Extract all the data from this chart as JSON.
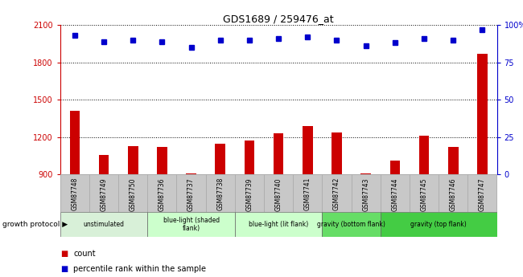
{
  "title": "GDS1689 / 259476_at",
  "samples": [
    "GSM87748",
    "GSM87749",
    "GSM87750",
    "GSM87736",
    "GSM87737",
    "GSM87738",
    "GSM87739",
    "GSM87740",
    "GSM87741",
    "GSM87742",
    "GSM87743",
    "GSM87744",
    "GSM87745",
    "GSM87746",
    "GSM87747"
  ],
  "counts": [
    1410,
    1060,
    1130,
    1120,
    910,
    1150,
    1170,
    1230,
    1290,
    1240,
    910,
    1010,
    1210,
    1120,
    1870
  ],
  "percentile": [
    93,
    89,
    90,
    89,
    85,
    90,
    90,
    91,
    92,
    90,
    86,
    88,
    91,
    90,
    97
  ],
  "ylim_left": [
    900,
    2100
  ],
  "ylim_right": [
    0,
    100
  ],
  "yticks_left": [
    900,
    1200,
    1500,
    1800,
    2100
  ],
  "yticks_right": [
    0,
    25,
    50,
    75,
    100
  ],
  "bar_color": "#cc0000",
  "dot_color": "#0000cc",
  "groups": [
    {
      "label": "unstimulated",
      "start": 0,
      "end": 3,
      "color": "#d8f0d8"
    },
    {
      "label": "blue-light (shaded\nflank)",
      "start": 3,
      "end": 6,
      "color": "#ccffcc"
    },
    {
      "label": "blue-light (lit flank)",
      "start": 6,
      "end": 9,
      "color": "#ccffcc"
    },
    {
      "label": "gravity (bottom flank)",
      "start": 9,
      "end": 11,
      "color": "#66dd66"
    },
    {
      "label": "gravity (top flank)",
      "start": 11,
      "end": 15,
      "color": "#44cc44"
    }
  ],
  "legend_items": [
    {
      "label": "count",
      "color": "#cc0000"
    },
    {
      "label": "percentile rank within the sample",
      "color": "#0000cc"
    }
  ],
  "growth_protocol_label": "growth protocol",
  "background_color": "#ffffff",
  "tick_color_left": "#cc0000",
  "tick_color_right": "#0000cc",
  "bar_width": 0.35
}
